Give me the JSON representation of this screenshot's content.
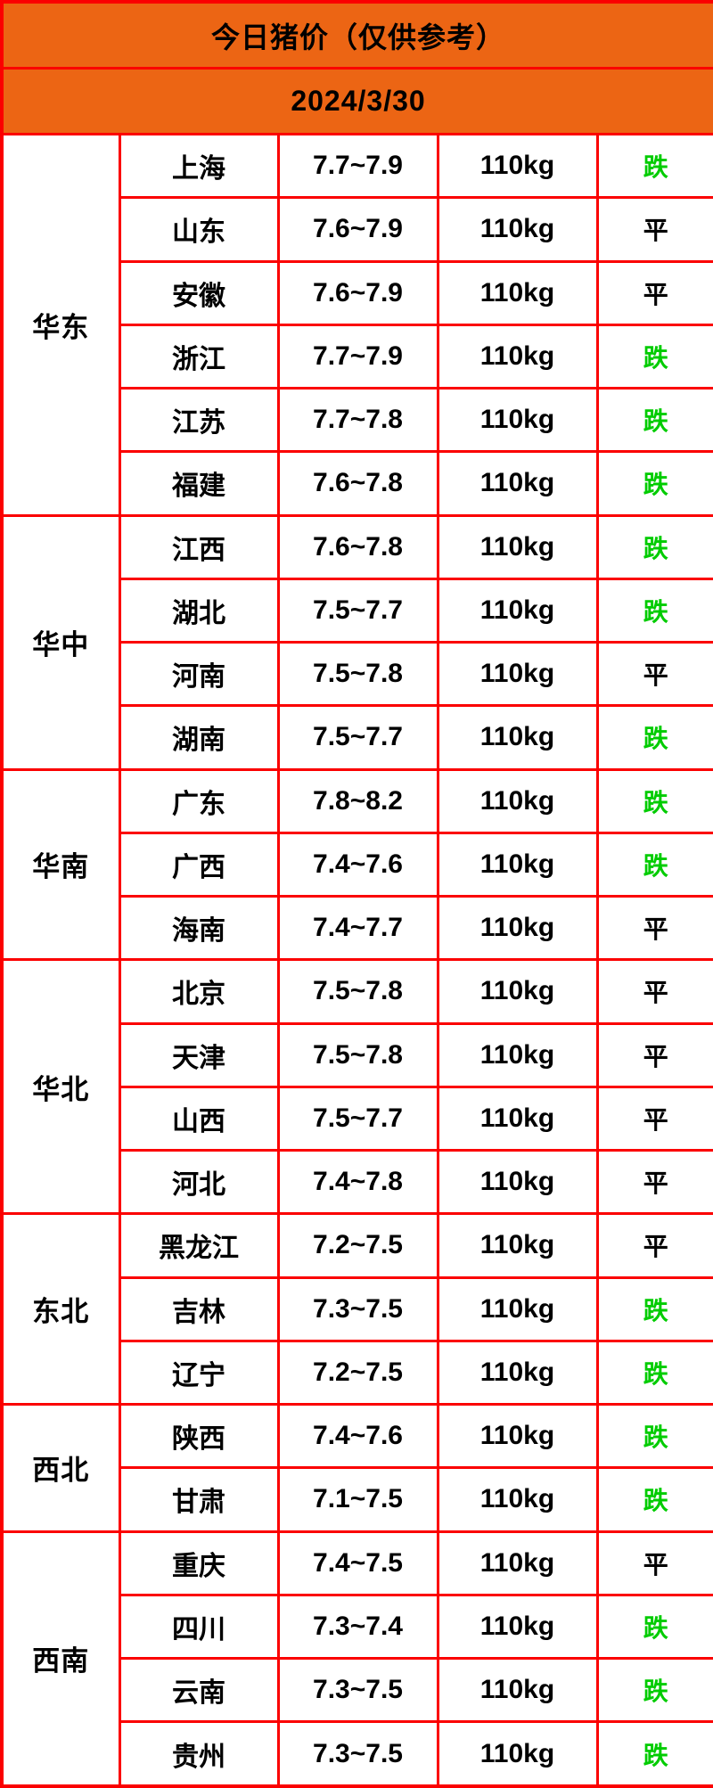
{
  "chart_data": {
    "type": "table",
    "title": "今日猪价（仅供参考）",
    "date": "2024/3/30",
    "regions": [
      {
        "name": "华东",
        "rows": [
          {
            "province": "上海",
            "price": "7.7~7.9",
            "weight": "110kg",
            "trend": "跌"
          },
          {
            "province": "山东",
            "price": "7.6~7.9",
            "weight": "110kg",
            "trend": "平"
          },
          {
            "province": "安徽",
            "price": "7.6~7.9",
            "weight": "110kg",
            "trend": "平"
          },
          {
            "province": "浙江",
            "price": "7.7~7.9",
            "weight": "110kg",
            "trend": "跌"
          },
          {
            "province": "江苏",
            "price": "7.7~7.8",
            "weight": "110kg",
            "trend": "跌"
          },
          {
            "province": "福建",
            "price": "7.6~7.8",
            "weight": "110kg",
            "trend": "跌"
          }
        ]
      },
      {
        "name": "华中",
        "rows": [
          {
            "province": "江西",
            "price": "7.6~7.8",
            "weight": "110kg",
            "trend": "跌"
          },
          {
            "province": "湖北",
            "price": "7.5~7.7",
            "weight": "110kg",
            "trend": "跌"
          },
          {
            "province": "河南",
            "price": "7.5~7.8",
            "weight": "110kg",
            "trend": "平"
          },
          {
            "province": "湖南",
            "price": "7.5~7.7",
            "weight": "110kg",
            "trend": "跌"
          }
        ]
      },
      {
        "name": "华南",
        "rows": [
          {
            "province": "广东",
            "price": "7.8~8.2",
            "weight": "110kg",
            "trend": "跌"
          },
          {
            "province": "广西",
            "price": "7.4~7.6",
            "weight": "110kg",
            "trend": "跌"
          },
          {
            "province": "海南",
            "price": "7.4~7.7",
            "weight": "110kg",
            "trend": "平"
          }
        ]
      },
      {
        "name": "华北",
        "rows": [
          {
            "province": "北京",
            "price": "7.5~7.8",
            "weight": "110kg",
            "trend": "平"
          },
          {
            "province": "天津",
            "price": "7.5~7.8",
            "weight": "110kg",
            "trend": "平"
          },
          {
            "province": "山西",
            "price": "7.5~7.7",
            "weight": "110kg",
            "trend": "平"
          },
          {
            "province": "河北",
            "price": "7.4~7.8",
            "weight": "110kg",
            "trend": "平"
          }
        ]
      },
      {
        "name": "东北",
        "rows": [
          {
            "province": "黑龙江",
            "price": "7.2~7.5",
            "weight": "110kg",
            "trend": "平"
          },
          {
            "province": "吉林",
            "price": "7.3~7.5",
            "weight": "110kg",
            "trend": "跌"
          },
          {
            "province": "辽宁",
            "price": "7.2~7.5",
            "weight": "110kg",
            "trend": "跌"
          }
        ]
      },
      {
        "name": "西北",
        "rows": [
          {
            "province": "陕西",
            "price": "7.4~7.6",
            "weight": "110kg",
            "trend": "跌"
          },
          {
            "province": "甘肃",
            "price": "7.1~7.5",
            "weight": "110kg",
            "trend": "跌"
          }
        ]
      },
      {
        "name": "西南",
        "rows": [
          {
            "province": "重庆",
            "price": "7.4~7.5",
            "weight": "110kg",
            "trend": "平"
          },
          {
            "province": "四川",
            "price": "7.3~7.4",
            "weight": "110kg",
            "trend": "跌"
          },
          {
            "province": "云南",
            "price": "7.3~7.5",
            "weight": "110kg",
            "trend": "跌"
          },
          {
            "province": "贵州",
            "price": "7.3~7.5",
            "weight": "110kg",
            "trend": "跌"
          }
        ]
      }
    ]
  },
  "colors": {
    "header_orange": "#EC6514",
    "grid_red": "#FB0000",
    "cell_background": "#FFFFFF",
    "trend": {
      "跌": "#00CC00",
      "平": "#000000"
    }
  }
}
